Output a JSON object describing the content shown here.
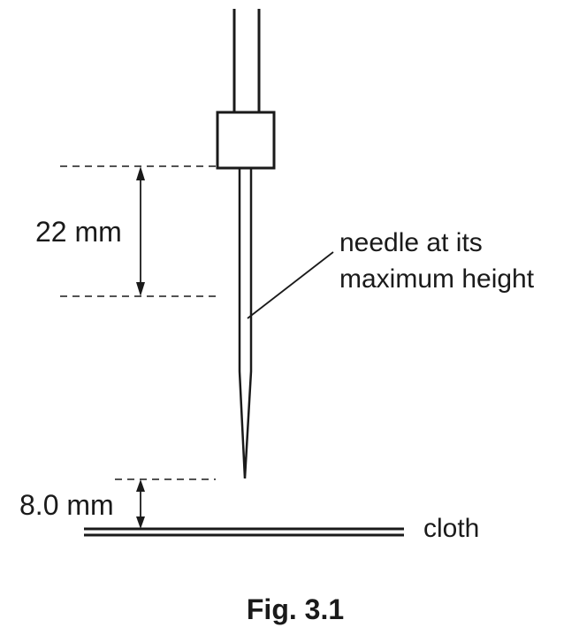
{
  "labels": {
    "upper_distance": "22 mm",
    "needle_line1": "needle at its",
    "needle_line2": "maximum height",
    "lower_distance": "8.0 mm",
    "cloth": "cloth"
  },
  "caption": "Fig. 3.1"
}
